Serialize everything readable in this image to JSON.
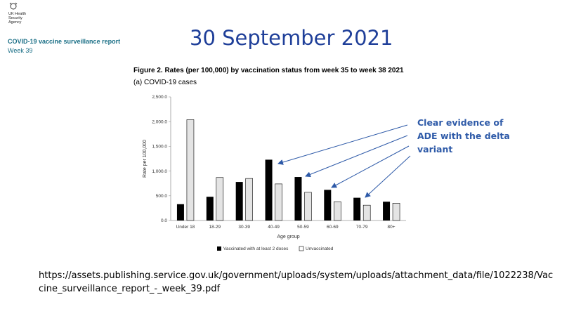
{
  "header": {
    "agency_lines": [
      "UK Health",
      "Security",
      "Agency"
    ],
    "report_title": "COVID-19 vaccine surveillance report",
    "report_week": "Week 39",
    "slide_title": "30 September 2021"
  },
  "figure": {
    "title": "Figure 2. Rates (per 100,000) by vaccination status from week 35 to week 38 2021",
    "subtitle": "(a) COVID-19 cases"
  },
  "annotation": {
    "lines": [
      "Clear evidence of",
      "ADE with the delta",
      "variant"
    ]
  },
  "source": {
    "url_text": "https://assets.publishing.service.gov.uk/government/uploads/system/uploads/attachment_data/file/1022238/Vaccine_surveillance_report_-_week_39.pdf"
  },
  "colors": {
    "vaccinated": "#000000",
    "unvaccinated": "#e4e4e4",
    "annotation": "#2e5aa8",
    "title": "#1f3f99",
    "report": "#1a6f86"
  },
  "chart_data": {
    "type": "bar",
    "categories": [
      "Under 18",
      "18-29",
      "30-39",
      "40-49",
      "50-59",
      "60-69",
      "70-79",
      "80+"
    ],
    "series": [
      {
        "name": "Vaccinated with at least 2 doses",
        "values": [
          330,
          480,
          780,
          1230,
          880,
          620,
          460,
          380
        ]
      },
      {
        "name": "Unvaccinated",
        "values": [
          2040,
          870,
          850,
          740,
          570,
          380,
          310,
          350
        ]
      }
    ],
    "ylim": [
      0,
      2500
    ],
    "yticks": [
      "0.0",
      "500.0",
      "1,000.0",
      "1,500.0",
      "2,000.0",
      "2,500.0"
    ],
    "xlabel": "Age group",
    "ylabel": "Rate per 100,000",
    "legend": "bottom"
  }
}
